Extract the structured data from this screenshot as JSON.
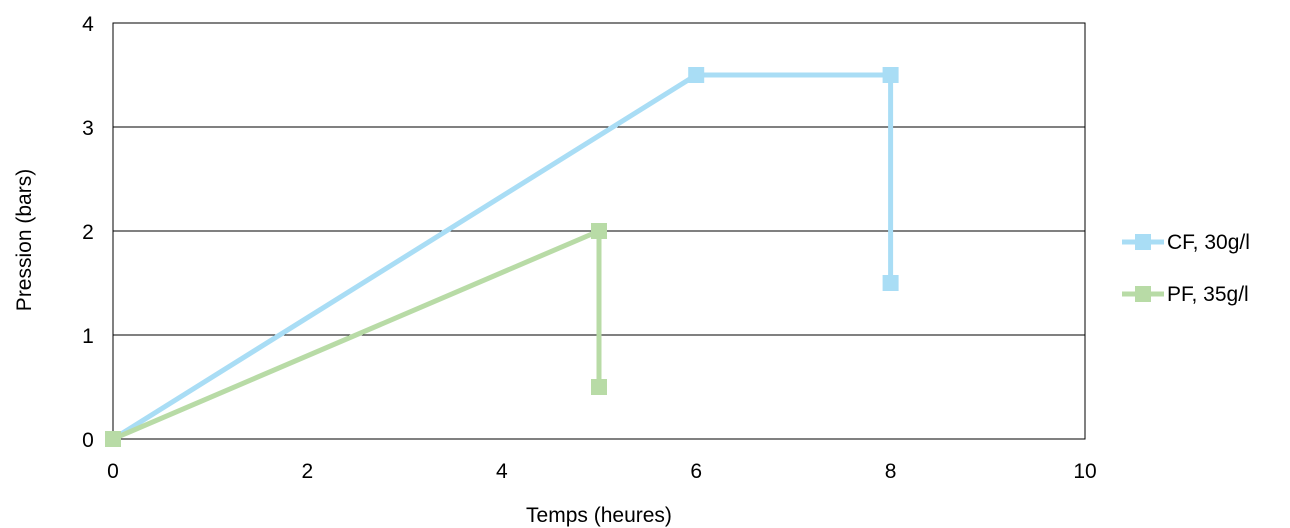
{
  "chart_data": {
    "type": "line",
    "title": "",
    "xlabel": "Temps (heures)",
    "ylabel": "Pression (bars)",
    "xlim": [
      0,
      10
    ],
    "ylim": [
      0,
      4
    ],
    "xticks": [
      0,
      2,
      4,
      6,
      8,
      10
    ],
    "yticks": [
      0,
      1,
      2,
      3,
      4
    ],
    "grid": "horizontal",
    "legend_position": "right",
    "series": [
      {
        "name": "CF, 30g/l",
        "color": "#a9ddf5",
        "marker": "square",
        "points": [
          [
            0,
            0
          ],
          [
            6,
            3.5
          ],
          [
            8,
            3.5
          ],
          [
            8,
            1.5
          ]
        ]
      },
      {
        "name": "PF, 35g/l",
        "color": "#b8dba6",
        "marker": "square",
        "points": [
          [
            0,
            0
          ],
          [
            5,
            2
          ],
          [
            5,
            0.5
          ]
        ]
      }
    ]
  }
}
